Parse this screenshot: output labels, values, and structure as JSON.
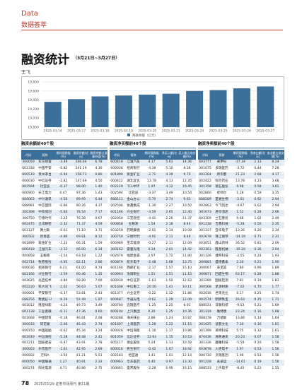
{
  "header": {
    "section": "Data",
    "label": "数据荟萃"
  },
  "title": "融资统计",
  "subtitle": "（3月21日~3月27日）",
  "author": "王飞",
  "chart_data": {
    "type": "bar",
    "legend": "两融余额（亿元）",
    "color": "#3d6f9b",
    "grid": true,
    "categories": [
      "2025-03-14",
      "2025-03-17",
      "2025-03-18",
      "2025-03-19",
      "2025-03-20",
      "2025-03-21",
      "2025-03-24",
      "2025-03-25",
      "2025-03-26",
      "2025-03-27"
    ],
    "values": [
      19360,
      19420,
      19480,
      19500,
      19520,
      19540,
      19600,
      19620,
      19660,
      19700
    ],
    "ylim": [
      18800,
      19800
    ],
    "yticks": [
      {
        "value": 18800,
        "label": "18,800"
      },
      {
        "value": 19000,
        "label": "19,000"
      },
      {
        "value": 19200,
        "label": "19,200"
      },
      {
        "value": 19400,
        "label": "19,400"
      },
      {
        "value": 19600,
        "label": "19,600"
      },
      {
        "value": 19800,
        "label": "19,800"
      }
    ]
  },
  "tables": [
    {
      "title": "融资余额前40个股",
      "columns": [
        "代码",
        "简称",
        "期间涨跌幅(%)",
        "融资余额(亿元)",
        "融资余额占流通市值(%)"
      ],
      "rows": [
        [
          "300059",
          "东方财富",
          "-3.49",
          "246.04",
          "6.78"
        ],
        [
          "601318",
          "中国平安",
          "-0.82",
          "241.19",
          "4.30"
        ],
        [
          "600519",
          "贵州茅台",
          "-0.94",
          "158.73",
          "0.80"
        ],
        [
          "600030",
          "中信证券",
          "-2.82",
          "147.69",
          "4.50"
        ],
        [
          "002594",
          "比亚迪",
          "-0.37",
          "98.00",
          "1.40"
        ],
        [
          "600900",
          "长江电力",
          "0.47",
          "97.36",
          "1.43"
        ],
        [
          "000063",
          "中兴通讯",
          "-4.50",
          "89.69",
          "6.44"
        ],
        [
          "688981",
          "中芯国际",
          "-0.86",
          "80.26",
          "4.37"
        ],
        [
          "300308",
          "中际旭创",
          "-5.60",
          "78.54",
          "7.17"
        ],
        [
          "300750",
          "宁德时代",
          "-1.25",
          "76.38",
          "0.67"
        ],
        [
          "002475",
          "立讯精密",
          "-2.32",
          "71.37",
          "4.59"
        ],
        [
          "601127",
          "赛力斯",
          "-0.61",
          "71.10",
          "3.71"
        ],
        [
          "300502",
          "新易盛",
          "-4.86",
          "69.81",
          "8.12"
        ],
        [
          "601899",
          "紫金矿业",
          "-1.23",
          "66.31",
          "1.59"
        ],
        [
          "600418",
          "江淮汽车",
          "-2.12",
          "66.00",
          "6.34"
        ],
        [
          "000858",
          "五粮液",
          "-1.54",
          "63.18",
          "1.22"
        ],
        [
          "002714",
          "牧原股份",
          "-4.95",
          "62.11",
          "2.86"
        ],
        [
          "600036",
          "招商银行",
          "0.21",
          "61.00",
          "0.74"
        ],
        [
          "601166",
          "兴业银行",
          "-3.59",
          "60.46",
          "1.35"
        ],
        [
          "002625",
          "光启技术",
          "-4.80",
          "58.89",
          "7.00"
        ],
        [
          "002230",
          "科大讯飞",
          "-2.62",
          "56.63",
          "5.07"
        ],
        [
          "000001",
          "平安银行",
          "-0.37",
          "53.81",
          "2.43"
        ],
        [
          "688256",
          "寒武纪-U",
          "-9.29",
          "52.49",
          "1.97"
        ],
        [
          "601012",
          "隆基绿能",
          "-4.24",
          "49.73",
          "3.49"
        ],
        [
          "601138",
          "工业富联",
          "-6.11",
          "47.36",
          "0.60"
        ],
        [
          "601668",
          "中国建筑",
          "-0.18",
          "46.81",
          "2.08"
        ],
        [
          "300033",
          "同花顺",
          "-2.06",
          "45.43",
          "2.74"
        ],
        [
          "600150",
          "中国船舶",
          "-0.62",
          "45.34",
          "3.24"
        ],
        [
          "601919",
          "中远海控",
          "-5.28",
          "44.48",
          "2.41"
        ],
        [
          "601211",
          "国泰君安",
          "-0.47",
          "43.91",
          "2.78"
        ],
        [
          "300003",
          "乐普医疗",
          "-1.61",
          "42.95",
          "2.69"
        ],
        [
          "000002",
          "万科A",
          "-3.50",
          "41.21",
          "5.51"
        ],
        [
          "600050",
          "中国联通",
          "1.27",
          "40.91",
          "2.33"
        ],
        [
          "300274",
          "阳光电源",
          "4.71",
          "40.86",
          "2.75"
        ]
      ]
    },
    {
      "title": "融资净买额前40个股",
      "columns": [
        "代码",
        "简称",
        "期间涨跌幅(%)",
        "净买入额(亿元)",
        "买入额占成交额(%)"
      ],
      "rows": [
        [
          "600418",
          "江淮汽车",
          "4.17",
          "5.61",
          "14.36"
        ],
        [
          "600036",
          "招商银行",
          "-4.38",
          "5.10",
          "8.36"
        ],
        [
          "601899",
          "紫金矿业",
          "-2.71",
          "4.39",
          "9.70"
        ],
        [
          "000422",
          "湖北宜化",
          "13.78",
          "4.13",
          "12.35"
        ],
        [
          "002129",
          "TCL中环",
          "1.97",
          "4.12",
          "19.45"
        ],
        [
          "002594",
          "比亚迪",
          "-3.37",
          "3.49",
          "10.54"
        ],
        [
          "688111",
          "金山办公",
          "-5.70",
          "2.74",
          "9.63"
        ],
        [
          "002506",
          "协鑫集成",
          "-1.30",
          "2.27",
          "10.50"
        ],
        [
          "601166",
          "兴业银行",
          "-3.59",
          "2.65",
          "12.40"
        ],
        [
          "002050",
          "三花智控",
          "-4.41",
          "2.26",
          "11.37"
        ],
        [
          "000858",
          "五粮液",
          "1.54",
          "2.18",
          "8.40"
        ],
        [
          "603259",
          "药明康德",
          "-2.01",
          "2.14",
          "10.08"
        ],
        [
          "300750",
          "宁德时代",
          "-4.91",
          "2.11",
          "8.46"
        ],
        [
          "600989",
          "宝丰能源",
          "-0.27",
          "2.11",
          "12.09"
        ],
        [
          "300162",
          "雷曼光电",
          "4.24",
          "2.01",
          "14.42"
        ],
        [
          "002679",
          "福建金森",
          "2.97",
          "1.72",
          "11.80"
        ],
        [
          "600879",
          "航天电子",
          "-2.48",
          "1.68",
          "13.75"
        ],
        [
          "601168",
          "西部矿业",
          "-2.17",
          "1.57",
          "15.10"
        ],
        [
          "603993",
          "洛阳钼业",
          "1.51",
          "1.51",
          "11.15"
        ],
        [
          "600030",
          "中信证券",
          "-1.63",
          "1.50",
          "12.63"
        ],
        [
          "601608",
          "中信重工",
          "20.50",
          "1.41",
          "10.11"
        ],
        [
          "601377",
          "兴业证券",
          "-0.22",
          "1.32",
          "11.86"
        ],
        [
          "600487",
          "亨通光电",
          "-0.62",
          "1.29",
          "12.09"
        ],
        [
          "300760",
          "迈瑞医疗",
          "-1.25",
          "1.25",
          "8.01"
        ],
        [
          "600104",
          "上汽集团",
          "0.20",
          "1.25",
          "10.36"
        ],
        [
          "603288",
          "海天味业",
          "2.88",
          "1.23",
          "10.87"
        ],
        [
          "601607",
          "上海医药",
          "-1.28",
          "1.22",
          "11.15"
        ],
        [
          "600026",
          "中远海能",
          "-1.16",
          "1.17",
          "10.86"
        ],
        [
          "601059",
          "信达证券",
          "12.93",
          "1.15",
          "10.53"
        ],
        [
          "605117",
          "德业股份",
          "5.24",
          "1.13",
          "10.59"
        ],
        [
          "600016",
          "民生银行",
          "-0.42",
          "1.07",
          "18.92"
        ],
        [
          "002183",
          "怡亚通",
          "3.41",
          "1.01",
          "12.14"
        ],
        [
          "000963",
          "华东医药",
          "0.40",
          "0.97",
          "13.30"
        ],
        [
          "300661",
          "圣邦股份",
          "-2.28",
          "0.96",
          "16.15"
        ]
      ]
    },
    {
      "title": "融资净卖额前40个股",
      "columns": [
        "代码",
        "简称",
        "期间涨跌幅(%)",
        "净卖出额(亿元)",
        "卖出额占成交额(%)"
      ],
      "rows": [
        [
          "603777",
          "来伊份",
          "-17.34",
          "2.13",
          "8.24"
        ],
        [
          "301075",
          "多瑞医药",
          "-3.72",
          "0.44",
          "7.28"
        ],
        [
          "002264",
          "新华都",
          "21.23",
          "2.68",
          "4.17"
        ],
        [
          "002422",
          "科伦药业",
          "13.78",
          "4.23",
          "3.68"
        ],
        [
          "301158",
          "德石股份",
          "9.98",
          "0.58",
          "3.61"
        ],
        [
          "002860",
          "星帅尔",
          "1.28",
          "0.59",
          "3.35"
        ],
        [
          "688289",
          "圣湘生物",
          "-2.01",
          "0.92",
          "2.94"
        ],
        [
          "002863",
          "今飞凯达",
          "-4.67",
          "0.62",
          "2.94"
        ],
        [
          "301073",
          "君亭酒店",
          "1.52",
          "0.28",
          "2.66"
        ],
        [
          "603169",
          "兰石重装",
          "9.66",
          "1.02",
          "2.49"
        ],
        [
          "601218",
          "吉鑫科技",
          "-5.28",
          "0.56",
          "2.35"
        ],
        [
          "301337",
          "亚华电子",
          "13.26",
          "0.26",
          "2.34"
        ],
        [
          "002678",
          "珠江钢琴",
          "-14.19",
          "0.71",
          "2.31"
        ],
        [
          "603051",
          "鹿山新材",
          "36.52",
          "0.81",
          "2.09"
        ],
        [
          "002363",
          "隆基机械",
          "-19.20",
          "0.36",
          "2.04"
        ],
        [
          "301326",
          "捷邦科技",
          "-2.55",
          "0.24",
          "1.93"
        ],
        [
          "300881",
          "盛德鑫泰",
          "2.30",
          "0.21",
          "1.90"
        ],
        [
          "300067",
          "安诺其",
          "7.80",
          "0.96",
          "1.89"
        ],
        [
          "300871",
          "回盛生物",
          "63.17",
          "0.28",
          "1.88"
        ],
        [
          "301289",
          "国缆检测",
          "7.81",
          "0.19",
          "1.81"
        ],
        [
          "300568",
          "星源材质",
          "-7.02",
          "0.70",
          "1.77"
        ],
        [
          "002016",
          "世荣兆业",
          "0.17",
          "0.25",
          "1.74"
        ],
        [
          "002574",
          "明牌珠宝",
          "26.63",
          "0.25",
          "1.71"
        ],
        [
          "688531",
          "日联科技",
          "-9.53",
          "0.21",
          "1.69"
        ],
        [
          "301319",
          "唯特偶",
          "23.24",
          "0.16",
          "1.68"
        ],
        [
          "688178",
          "万德斯",
          "13.86",
          "0.14",
          "1.64"
        ],
        [
          "301025",
          "读客文化",
          "7.30",
          "0.16",
          "1.61"
        ],
        [
          "301399",
          "英特科技",
          "5.75",
          "0.32",
          "1.61"
        ],
        [
          "870436",
          "海希通讯",
          "20.23",
          "0.07",
          "1.58"
        ],
        [
          "301336",
          "趣睡科技",
          "-5.59",
          "0.20",
          "1.58"
        ],
        [
          "603678",
          "火炬电子",
          "1.97",
          "0.53",
          "1.56"
        ],
        [
          "000710",
          "贝瑞基因",
          "1.96",
          "0.53",
          "1.56"
        ],
        [
          "001228",
          "永泰运",
          "-14.61",
          "0.19",
          "1.56"
        ],
        [
          "688533",
          "上声电子",
          "-8.45",
          "0.21",
          "1.55"
        ]
      ]
    }
  ],
  "footer": {
    "page": "78",
    "text": "2025/03/29 证券市场周刊 第11期"
  }
}
